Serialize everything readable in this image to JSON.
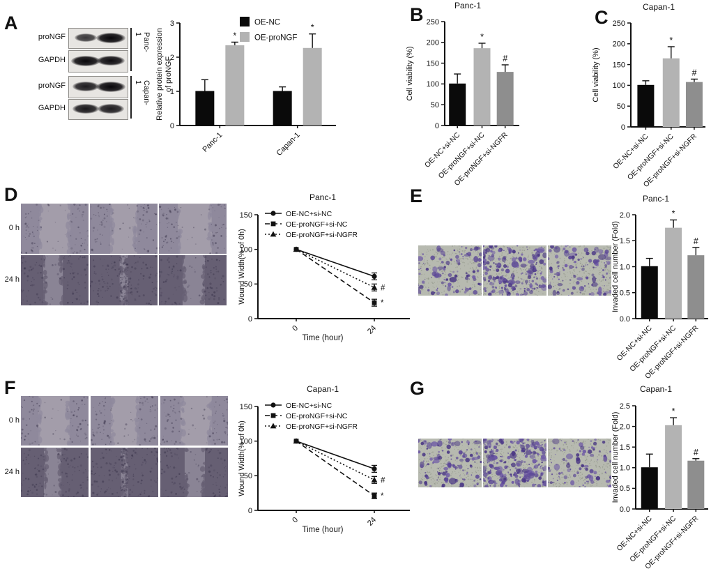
{
  "figure": {
    "colors": {
      "bar_black": "#0a0a0a",
      "bar_light": "#b3b3b3",
      "bar_dark": "#8e8e8e",
      "axis": "#111111",
      "transwell_bg": "#b7bab0",
      "transwell_spot": "#53408f",
      "wound_light_bg": "#a39daa",
      "wound_light_band": "#8f899c",
      "wound_dark_bg": "#8a8495",
      "wound_dark_band": "#665f73"
    }
  },
  "panels": {
    "A": {
      "letter": "A",
      "blot": {
        "rows": [
          {
            "label": "proNGF",
            "group": "Panc-1",
            "bands": [
              0.55,
              1.0
            ]
          },
          {
            "label": "GAPDH",
            "group": "Panc-1",
            "bands": [
              1.0,
              0.95
            ]
          },
          {
            "label": "proNGF",
            "group": "Capan-1",
            "bands": [
              0.8,
              1.0
            ]
          },
          {
            "label": "GAPDH",
            "group": "Capan-1",
            "bands": [
              0.85,
              0.8
            ]
          }
        ],
        "group_labels": [
          "Panc-1",
          "Capan-1"
        ],
        "lane_labels": [
          "OE-NC",
          "OE-proNGF"
        ]
      }
    },
    "B": {
      "letter": "B"
    },
    "C": {
      "letter": "C"
    },
    "D": {
      "letter": "D",
      "row_labels": [
        "0 h",
        "24 h"
      ],
      "col_labels": [
        "OE-NC+si-NC",
        "OE-proNGF+si-NC",
        "OE-proNGF+si-NGFR"
      ],
      "images": [
        [
          {
            "gap": [
              0.27,
              0.73
            ],
            "tone": "light"
          },
          {
            "gap": [
              0.3,
              0.7
            ],
            "tone": "light"
          },
          {
            "gap": [
              0.28,
              0.78
            ],
            "tone": "light"
          }
        ],
        [
          {
            "gap": [
              0.33,
              0.62
            ],
            "tone": "dark"
          },
          {
            "gap": [
              0.44,
              0.56
            ],
            "tone": "dark",
            "scatter": true
          },
          {
            "gap": [
              0.35,
              0.68
            ],
            "tone": "dark"
          }
        ]
      ]
    },
    "E": {
      "letter": "E",
      "col_labels": [
        "OE-NC+si-NC",
        "OE-proNGF+si-NC",
        "OE-proNGF+si-NGFR"
      ],
      "densities": [
        90,
        200,
        110
      ]
    },
    "F": {
      "letter": "F",
      "row_labels": [
        "0 h",
        "24 h"
      ],
      "col_labels": [
        "OE-NC+si-NC",
        "OE-proNGF+si-NC",
        "OE-proNGF+si-NGFR"
      ],
      "images": [
        [
          {
            "gap": [
              0.26,
              0.72
            ],
            "tone": "light"
          },
          {
            "gap": [
              0.3,
              0.72
            ],
            "tone": "light"
          },
          {
            "gap": [
              0.3,
              0.76
            ],
            "tone": "light"
          }
        ],
        [
          {
            "gap": [
              0.34,
              0.6
            ],
            "tone": "dark"
          },
          {
            "gap": [
              0.45,
              0.55
            ],
            "tone": "dark",
            "scatter": true
          },
          {
            "gap": [
              0.36,
              0.66
            ],
            "tone": "dark"
          }
        ]
      ]
    },
    "G": {
      "letter": "G",
      "col_labels": [
        "OE-NC+si-NC",
        "OE-proNGF+si-NC",
        "OE-proNGF+si-NGFR"
      ],
      "densities": [
        110,
        230,
        80
      ]
    }
  },
  "chart_data": [
    {
      "id": "A",
      "type": "bar",
      "grouped": true,
      "title": "",
      "ylabel": "Relative protein expression of proNGF",
      "ylabel_lines": [
        "Relative protein expression",
        "of proNGF"
      ],
      "ylim": [
        0,
        3
      ],
      "ystep": 1,
      "ydecimals": 0,
      "categories": [
        "Panc-1",
        "Capan-1"
      ],
      "series": [
        {
          "name": "OE-NC",
          "color": "#0a0a0a",
          "values": [
            1.01,
            1.01
          ],
          "err": [
            0.33,
            0.12
          ],
          "sig": [
            "",
            ""
          ]
        },
        {
          "name": "OE-proNGF",
          "color": "#b3b3b3",
          "values": [
            2.35,
            2.27
          ],
          "err": [
            0.09,
            0.41
          ],
          "sig": [
            "*",
            "*"
          ]
        }
      ],
      "legend_position": "top"
    },
    {
      "id": "B",
      "type": "bar",
      "title": "Panc-1",
      "ylabel": "Cell viability (%)",
      "ylim": [
        0,
        250
      ],
      "ystep": 50,
      "ydecimals": 0,
      "categories": [
        "OE-NC+si-NC",
        "OE-proNGF+si-NC",
        "OE-proNGF+si-NGFR"
      ],
      "values": [
        101,
        186,
        129
      ],
      "err": [
        23,
        12,
        17
      ],
      "sig": [
        "",
        "*",
        "#"
      ],
      "colors": [
        "#0a0a0a",
        "#b3b3b3",
        "#8e8e8e"
      ]
    },
    {
      "id": "C",
      "type": "bar",
      "title": "Capan-1",
      "ylabel": "Cell viability (%)",
      "ylim": [
        0,
        250
      ],
      "ystep": 50,
      "ydecimals": 0,
      "categories": [
        "OE-NC+si-NC",
        "OE-proNGF+si-NC",
        "OE-proNGF+si-NGFR"
      ],
      "values": [
        101,
        165,
        108
      ],
      "err": [
        10,
        28,
        7
      ],
      "sig": [
        "",
        "*",
        "#"
      ],
      "colors": [
        "#0a0a0a",
        "#b3b3b3",
        "#8e8e8e"
      ]
    },
    {
      "id": "D",
      "type": "line",
      "title": "Panc-1",
      "ylabel": "Wound Width(% of 0h)",
      "xlabel": "Time (hour)",
      "x": [
        0,
        24
      ],
      "xtick_labels": [
        "0",
        "24"
      ],
      "ylim": [
        0,
        150
      ],
      "ystep": 50,
      "ydecimals": 0,
      "series": [
        {
          "name": "OE-NC+si-NC",
          "marker": "circle",
          "line": "solid",
          "values": [
            100,
            61
          ],
          "err": [
            0,
            5
          ],
          "sig": ""
        },
        {
          "name": "OE-proNGF+si-NC",
          "marker": "square",
          "line": "dashed",
          "values": [
            100,
            23
          ],
          "err": [
            0,
            5
          ],
          "sig": "*"
        },
        {
          "name": "OE-proNGF+si-NGFR",
          "marker": "triangle",
          "line": "dotted",
          "values": [
            100,
            45
          ],
          "err": [
            0,
            5
          ],
          "sig": "#"
        }
      ]
    },
    {
      "id": "E",
      "type": "bar",
      "title": "Panc-1",
      "ylabel": "Invaded cell number (Fold)",
      "ylim": [
        0,
        2
      ],
      "ystep": 0.5,
      "ydecimals": 1,
      "categories": [
        "OE-NC+si-NC",
        "OE-proNGF+si-NC",
        "OE-proNGF+si-NGFR"
      ],
      "values": [
        1.01,
        1.75,
        1.22
      ],
      "err": [
        0.15,
        0.15,
        0.15
      ],
      "sig": [
        "",
        "*",
        "#"
      ],
      "colors": [
        "#0a0a0a",
        "#b3b3b3",
        "#8e8e8e"
      ]
    },
    {
      "id": "F",
      "type": "line",
      "title": "Capan-1",
      "ylabel": "Wound Width(% of 0h)",
      "xlabel": "Time (hour)",
      "x": [
        0,
        24
      ],
      "xtick_labels": [
        "0",
        "24"
      ],
      "ylim": [
        0,
        150
      ],
      "ystep": 50,
      "ydecimals": 0,
      "series": [
        {
          "name": "OE-NC+si-NC",
          "marker": "circle",
          "line": "solid",
          "values": [
            100,
            60
          ],
          "err": [
            0,
            5
          ],
          "sig": ""
        },
        {
          "name": "OE-proNGF+si-NC",
          "marker": "square",
          "line": "dashed",
          "values": [
            100,
            21
          ],
          "err": [
            0,
            4
          ],
          "sig": "*"
        },
        {
          "name": "OE-proNGF+si-NGFR",
          "marker": "triangle",
          "line": "dotted",
          "values": [
            100,
            44
          ],
          "err": [
            0,
            5
          ],
          "sig": "#"
        }
      ]
    },
    {
      "id": "G",
      "type": "bar",
      "title": "Capan-1",
      "ylabel": "Invaded cell number (Fold)",
      "ylim": [
        0,
        2.5
      ],
      "ystep": 0.5,
      "ydecimals": 1,
      "categories": [
        "OE-NC+si-NC",
        "OE-proNGF+si-NC",
        "OE-proNGF+si-NGFR"
      ],
      "values": [
        1.01,
        2.03,
        1.17
      ],
      "err": [
        0.32,
        0.18,
        0.05
      ],
      "sig": [
        "",
        "*",
        "#"
      ],
      "colors": [
        "#0a0a0a",
        "#b3b3b3",
        "#8e8e8e"
      ]
    }
  ]
}
